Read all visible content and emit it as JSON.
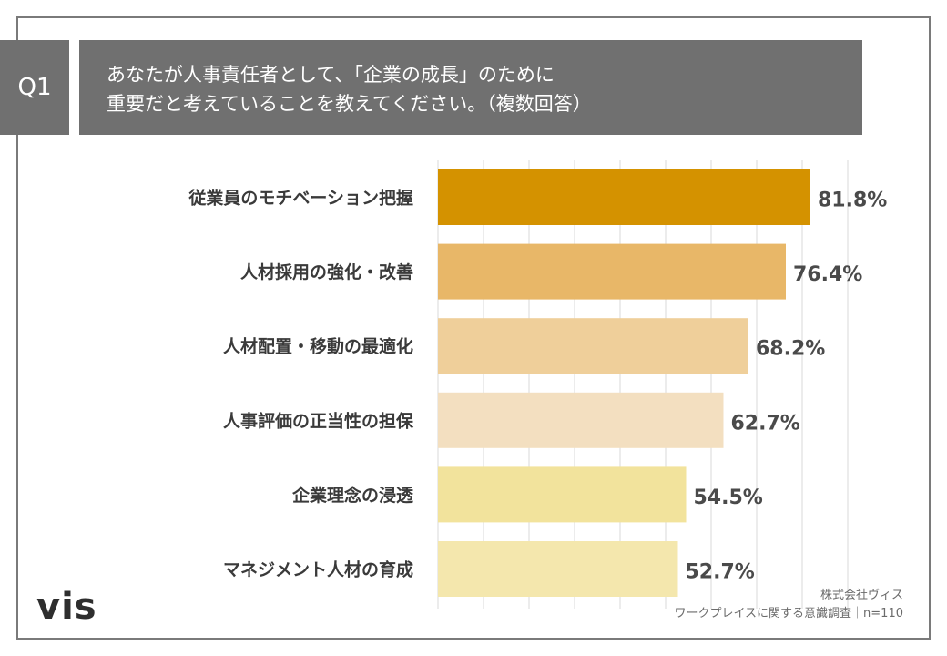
{
  "question": {
    "label": "Q1",
    "text_line1": "あなたが人事責任者として、「企業の成長」のために",
    "text_line2": "重要だと考えていることを教えてください。（複数回答）"
  },
  "chart_data": {
    "type": "bar",
    "orientation": "horizontal",
    "categories": [
      "従業員のモチベーション把握",
      "人材採用の強化・改善",
      "人材配置・移動の最適化",
      "人事評価の正当性の担保",
      "企業理念の浸透",
      "マネジメント人材の育成"
    ],
    "values": [
      81.8,
      76.4,
      68.2,
      62.7,
      54.5,
      52.7
    ],
    "value_labels": [
      "81.8%",
      "76.4%",
      "68.2%",
      "62.7%",
      "54.5%",
      "52.7%"
    ],
    "bar_colors": [
      "#d49200",
      "#e8b768",
      "#efcf9a",
      "#f3dfc0",
      "#f2e39c",
      "#f4e7ad"
    ],
    "xlim": [
      0,
      90
    ],
    "grid_step": 10,
    "grid": true
  },
  "branding": {
    "logo": "vis",
    "source_line1": "株式会社ヴィス",
    "source_line2": "ワークプレイスに関する意識調査｜n=110"
  }
}
